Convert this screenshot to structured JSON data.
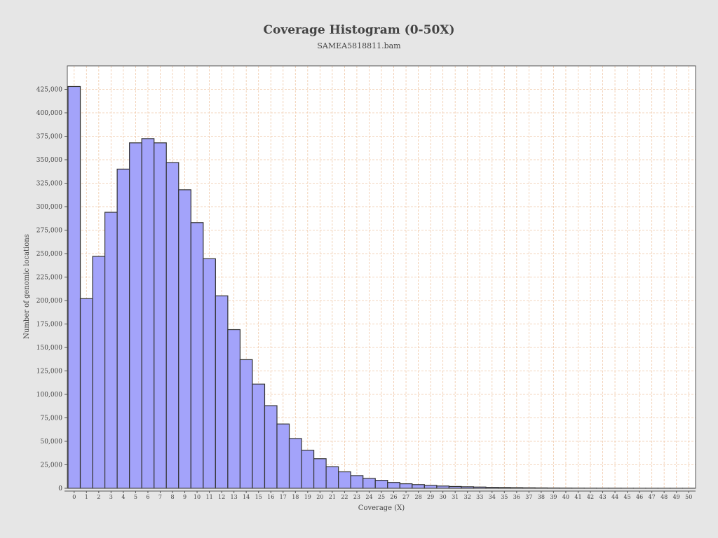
{
  "chart_data": {
    "type": "bar",
    "title": "Coverage Histogram (0-50X)",
    "subtitle": "SAMEA5818811.bam",
    "xlabel": "Coverage (X)",
    "ylabel": "Number of genomic locations",
    "ylim": [
      0,
      450000
    ],
    "yticks": [
      0,
      25000,
      50000,
      75000,
      100000,
      125000,
      150000,
      175000,
      200000,
      225000,
      250000,
      275000,
      300000,
      325000,
      350000,
      375000,
      400000,
      425000
    ],
    "ytick_labels": [
      "0",
      "25,000",
      "50,000",
      "75,000",
      "100,000",
      "125,000",
      "150,000",
      "175,000",
      "200,000",
      "225,000",
      "250,000",
      "275,000",
      "300,000",
      "325,000",
      "350,000",
      "375,000",
      "400,000",
      "425,000"
    ],
    "categories": [
      "0",
      "1",
      "2",
      "3",
      "4",
      "5",
      "6",
      "7",
      "8",
      "9",
      "10",
      "11",
      "12",
      "13",
      "14",
      "15",
      "16",
      "17",
      "18",
      "19",
      "20",
      "21",
      "22",
      "23",
      "24",
      "25",
      "26",
      "27",
      "28",
      "29",
      "30",
      "31",
      "32",
      "33",
      "34",
      "35",
      "36",
      "37",
      "38",
      "39",
      "40",
      "41",
      "42",
      "43",
      "44",
      "45",
      "46",
      "47",
      "48",
      "49",
      "50"
    ],
    "values": [
      428000,
      202000,
      247000,
      294000,
      340000,
      368000,
      372500,
      368000,
      347000,
      318000,
      283000,
      244500,
      205000,
      169000,
      137000,
      111000,
      88000,
      68500,
      53000,
      40500,
      31500,
      23000,
      17500,
      13500,
      10500,
      8500,
      6200,
      4800,
      3900,
      3100,
      2400,
      1900,
      1600,
      1300,
      1000,
      850,
      700,
      550,
      420,
      320,
      250,
      190,
      150,
      110,
      90,
      70,
      55,
      45,
      35,
      28,
      22
    ],
    "bar_color": "#a3a3fa",
    "bar_stroke": "#333333",
    "plot_background": "#ffffff",
    "grid_color": "#f0c8a8",
    "grid": true
  }
}
